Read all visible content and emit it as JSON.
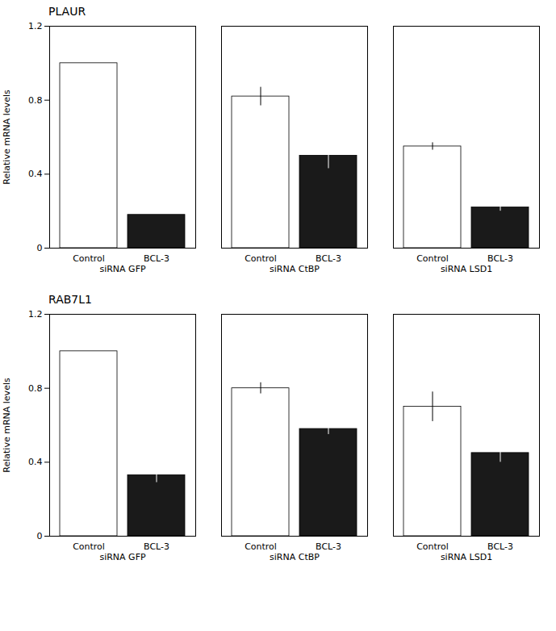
{
  "chart_data": [
    {
      "type": "bar",
      "title": "PLAUR",
      "y_label": "Relative mRNA levels",
      "categories": [
        "siRNA GFP",
        "siRNA CtBP",
        "siRNA LSD1"
      ],
      "series": [
        {
          "name": "Control",
          "color": "#ffffff",
          "values": [
            1.0,
            0.82,
            0.55
          ],
          "errors": [
            0.0,
            0.05,
            0.02
          ]
        },
        {
          "name": "BCL-3",
          "color": "#1a1a1a",
          "values": [
            0.18,
            0.5,
            0.22
          ],
          "errors": [
            0.0,
            0.07,
            0.02
          ]
        }
      ],
      "ylim": [
        0,
        1.2
      ],
      "yticks": [
        0,
        0.4,
        0.8,
        1.2
      ],
      "grid": false
    },
    {
      "type": "bar",
      "title": "RAB7L1",
      "y_label": "Relative mRNA levels",
      "categories": [
        "siRNA GFP",
        "siRNA CtBP",
        "siRNA LSD1"
      ],
      "series": [
        {
          "name": "Control",
          "color": "#ffffff",
          "values": [
            1.0,
            0.8,
            0.7
          ],
          "errors": [
            0.0,
            0.03,
            0.08
          ]
        },
        {
          "name": "BCL-3",
          "color": "#1a1a1a",
          "values": [
            0.33,
            0.58,
            0.45
          ],
          "errors": [
            0.04,
            0.03,
            0.05
          ]
        }
      ],
      "ylim": [
        0,
        1.2
      ],
      "yticks": [
        0,
        0.4,
        0.8,
        1.2
      ],
      "grid": false
    }
  ]
}
